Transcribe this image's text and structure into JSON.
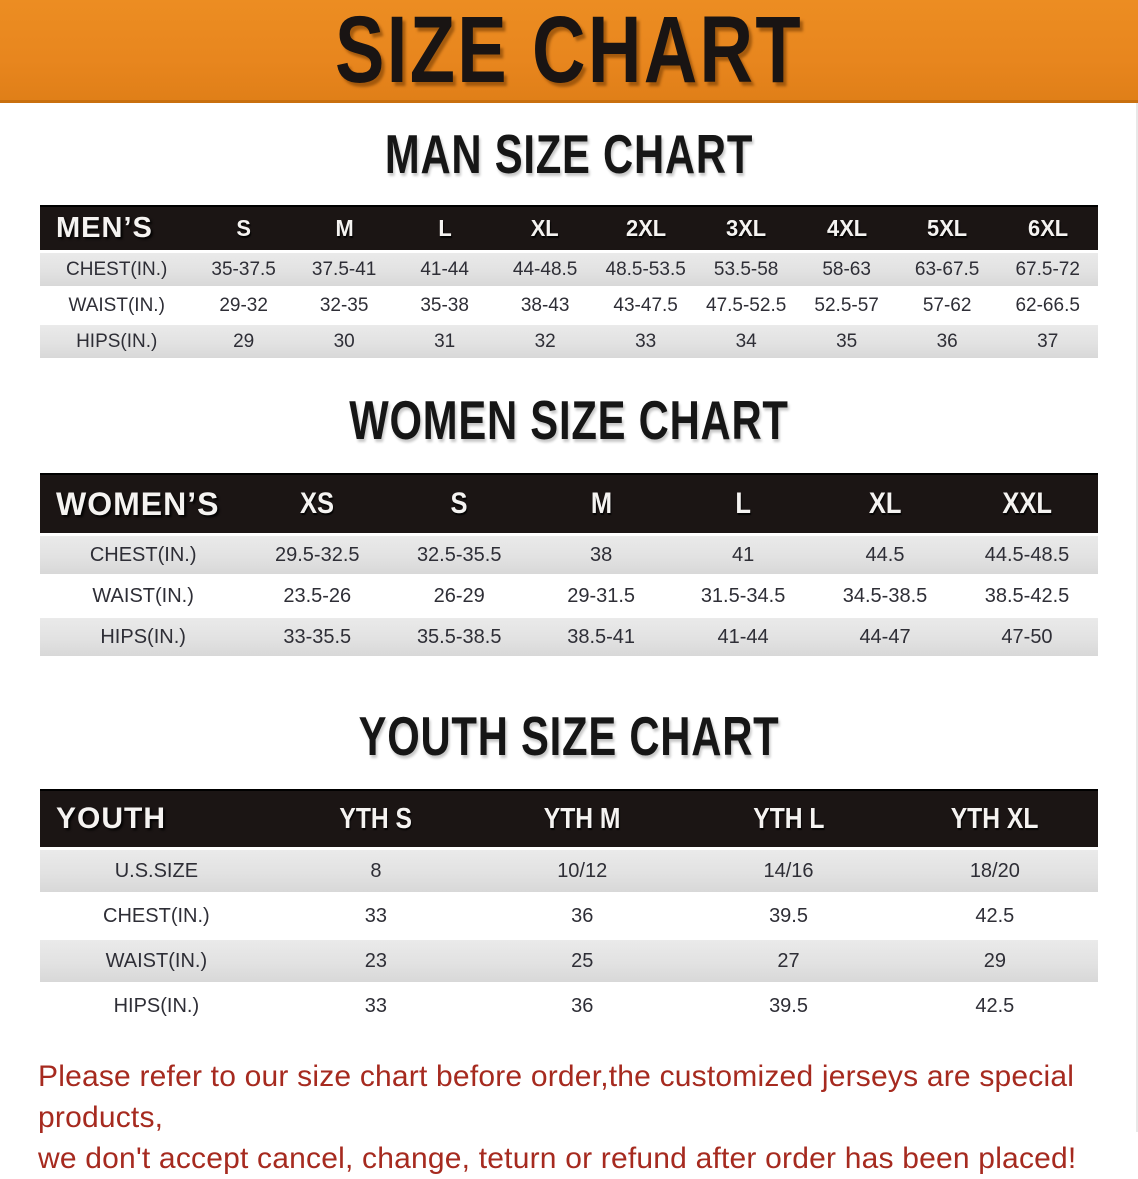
{
  "banner": {
    "title": "SIZE CHART"
  },
  "colors": {
    "banner_orange": "#E8861E",
    "table_header_black": "#1B1514",
    "row_shade_gray": "#E3E3E3",
    "disclaimer_red": "#A62A1F",
    "body_text": "#2E2E36"
  },
  "sections": [
    {
      "title": "MAN SIZE CHART",
      "table": {
        "header": [
          "MEN’S",
          "S",
          "M",
          "L",
          "XL",
          "2XL",
          "3XL",
          "4XL",
          "5XL",
          "6XL"
        ],
        "rows": [
          {
            "label": "CHEST(IN.)",
            "values": [
              "35-37.5",
              "37.5-41",
              "41-44",
              "44-48.5",
              "48.5-53.5",
              "53.5-58",
              "58-63",
              "63-67.5",
              "67.5-72"
            ]
          },
          {
            "label": "WAIST(IN.)",
            "values": [
              "29-32",
              "32-35",
              "35-38",
              "38-43",
              "43-47.5",
              "47.5-52.5",
              "52.5-57",
              "57-62",
              "62-66.5"
            ]
          },
          {
            "label": "HIPS(IN.)",
            "values": [
              "29",
              "30",
              "31",
              "32",
              "33",
              "34",
              "35",
              "36",
              "37"
            ]
          }
        ]
      }
    },
    {
      "title": "WOMEN SIZE CHART",
      "table": {
        "header": [
          "WOMEN’S",
          "XS",
          "S",
          "M",
          "L",
          "XL",
          "XXL"
        ],
        "rows": [
          {
            "label": "CHEST(IN.)",
            "values": [
              "29.5-32.5",
              "32.5-35.5",
              "38",
              "41",
              "44.5",
              "44.5-48.5"
            ]
          },
          {
            "label": "WAIST(IN.)",
            "values": [
              "23.5-26",
              "26-29",
              "29-31.5",
              "31.5-34.5",
              "34.5-38.5",
              "38.5-42.5"
            ]
          },
          {
            "label": "HIPS(IN.)",
            "values": [
              "33-35.5",
              "35.5-38.5",
              "38.5-41",
              "41-44",
              "44-47",
              "47-50"
            ]
          }
        ]
      }
    },
    {
      "title": "YOUTH SIZE CHART",
      "table": {
        "header": [
          "YOUTH",
          "YTH S",
          "YTH M",
          "YTH L",
          "YTH XL"
        ],
        "rows": [
          {
            "label": "U.S.SIZE",
            "values": [
              "8",
              "10/12",
              "14/16",
              "18/20"
            ]
          },
          {
            "label": "CHEST(IN.)",
            "values": [
              "33",
              "36",
              "39.5",
              "42.5"
            ]
          },
          {
            "label": "WAIST(IN.)",
            "values": [
              "23",
              "25",
              "27",
              "29"
            ]
          },
          {
            "label": "HIPS(IN.)",
            "values": [
              "33",
              "36",
              "39.5",
              "42.5"
            ]
          }
        ]
      }
    }
  ],
  "disclaimer": {
    "line1": "Please refer to our size chart before order,the customized jerseys are special products,",
    "line2": "we don't accept cancel, change, teturn or refund after order has been placed!"
  }
}
